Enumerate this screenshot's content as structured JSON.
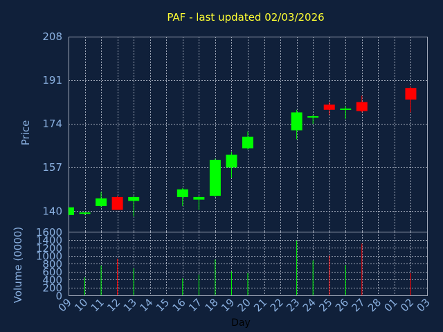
{
  "chart_data": {
    "type": "candlestick",
    "title": "PAF - last updated 02/03/2026",
    "xlabel": "Day",
    "price_panel": {
      "ylabel": "Price",
      "yticks": [
        140,
        157,
        174,
        191,
        208
      ],
      "ylim": [
        132,
        208
      ],
      "grid": true
    },
    "volume_panel": {
      "ylabel": "Volume (0000)",
      "yticks": [
        0,
        200,
        400,
        600,
        800,
        1000,
        1200,
        1400,
        1600
      ],
      "ylim": [
        0,
        1600
      ],
      "grid": true
    },
    "x_ticks": [
      "09",
      "10",
      "11",
      "12",
      "13",
      "14",
      "15",
      "16",
      "17",
      "18",
      "19",
      "20",
      "21",
      "22",
      "23",
      "24",
      "25",
      "26",
      "27",
      "28",
      "01",
      "02",
      "03"
    ],
    "candles": [
      {
        "day": "09",
        "open": 138.5,
        "high": 141.5,
        "low": 138.5,
        "close": 141.5,
        "volume": 0
      },
      {
        "day": "10",
        "open": 139.0,
        "high": 139.5,
        "low": 138.5,
        "close": 139.5,
        "volume": 450
      },
      {
        "day": "11",
        "open": 142.0,
        "high": 147.5,
        "low": 141.5,
        "close": 145.0,
        "volume": 750
      },
      {
        "day": "12",
        "open": 145.5,
        "high": 146.0,
        "low": 140.5,
        "close": 140.5,
        "volume": 920
      },
      {
        "day": "13",
        "open": 144.0,
        "high": 146.0,
        "low": 138.0,
        "close": 145.5,
        "volume": 680
      },
      {
        "day": "16",
        "open": 145.5,
        "high": 149.0,
        "low": 142.0,
        "close": 148.5,
        "volume": 430
      },
      {
        "day": "17",
        "open": 144.5,
        "high": 146.0,
        "low": 140.5,
        "close": 145.5,
        "volume": 520
      },
      {
        "day": "18",
        "open": 146.0,
        "high": 160.5,
        "low": 145.5,
        "close": 160.0,
        "volume": 900
      },
      {
        "day": "19",
        "open": 157.0,
        "high": 163.0,
        "low": 153.0,
        "close": 162.0,
        "volume": 600
      },
      {
        "day": "20",
        "open": 164.5,
        "high": 171.0,
        "low": 164.0,
        "close": 169.0,
        "volume": 560
      },
      {
        "day": "23",
        "open": 171.5,
        "high": 179.5,
        "low": 168.0,
        "close": 178.5,
        "volume": 1380
      },
      {
        "day": "24",
        "open": 177.0,
        "high": 177.5,
        "low": 174.0,
        "close": 177.0,
        "volume": 880
      },
      {
        "day": "25",
        "open": 181.5,
        "high": 182.5,
        "low": 177.5,
        "close": 179.5,
        "volume": 1000
      },
      {
        "day": "26",
        "open": 179.5,
        "high": 181.0,
        "low": 176.0,
        "close": 180.0,
        "volume": 760
      },
      {
        "day": "27",
        "open": 182.5,
        "high": 185.0,
        "low": 178.5,
        "close": 179.0,
        "volume": 1300
      },
      {
        "day": "02",
        "open": 188.0,
        "high": 188.5,
        "low": 178.5,
        "close": 183.5,
        "volume": 560
      }
    ],
    "colors": {
      "background": "#10203a",
      "up": "#00ff00",
      "down": "#ff0000",
      "grid": "#a0a8b8",
      "text": "#8ab0e0",
      "title": "#ffff33"
    }
  }
}
